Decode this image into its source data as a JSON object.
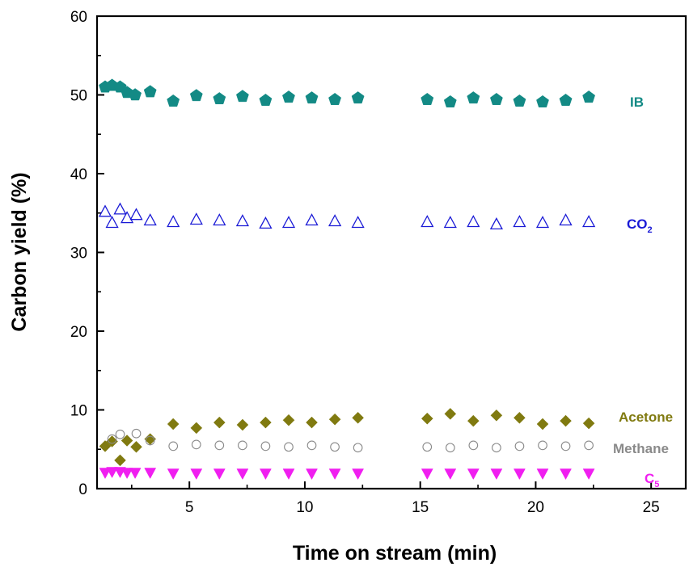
{
  "chart_data": {
    "type": "scatter",
    "xlabel": "Time on stream (min)",
    "ylabel": "Carbon yield (%)",
    "xlim": [
      1,
      26.5
    ],
    "ylim": [
      0,
      60
    ],
    "x_ticks": [
      5,
      10,
      15,
      20,
      25
    ],
    "x_tick_labels": [
      "5",
      "10",
      "15",
      "20",
      "25"
    ],
    "y_ticks": [
      0,
      10,
      20,
      30,
      40,
      50,
      60
    ],
    "y_tick_labels": [
      "0",
      "10",
      "20",
      "30",
      "40",
      "50",
      "60"
    ],
    "grid": false,
    "legend": "none (series labelled at right end of data)",
    "series": [
      {
        "key": "ib",
        "name": "IB",
        "marker": "pentagon-filled",
        "color": "#138a85",
        "points": [
          [
            1.35,
            51.0
          ],
          [
            1.65,
            51.2
          ],
          [
            2.0,
            51.0
          ],
          [
            2.3,
            50.3
          ],
          [
            2.65,
            50.0
          ],
          [
            3.3,
            50.4
          ],
          [
            4.3,
            49.2
          ],
          [
            5.3,
            49.9
          ],
          [
            6.3,
            49.5
          ],
          [
            7.3,
            49.8
          ],
          [
            8.3,
            49.3
          ],
          [
            9.3,
            49.7
          ],
          [
            10.3,
            49.6
          ],
          [
            11.3,
            49.4
          ],
          [
            12.3,
            49.6
          ],
          [
            15.3,
            49.4
          ],
          [
            16.3,
            49.1
          ],
          [
            17.3,
            49.6
          ],
          [
            18.3,
            49.4
          ],
          [
            19.3,
            49.2
          ],
          [
            20.3,
            49.1
          ],
          [
            21.3,
            49.3
          ],
          [
            22.3,
            49.7
          ]
        ]
      },
      {
        "key": "co2",
        "name": "CO",
        "name_subscript": "2",
        "marker": "triangle-open",
        "color": "#1a1ad6",
        "points": [
          [
            1.35,
            35.2
          ],
          [
            1.65,
            33.8
          ],
          [
            2.0,
            35.5
          ],
          [
            2.3,
            34.4
          ],
          [
            2.7,
            34.8
          ],
          [
            3.3,
            34.1
          ],
          [
            4.3,
            33.9
          ],
          [
            5.3,
            34.2
          ],
          [
            6.3,
            34.1
          ],
          [
            7.3,
            34.0
          ],
          [
            8.3,
            33.7
          ],
          [
            9.3,
            33.8
          ],
          [
            10.3,
            34.1
          ],
          [
            11.3,
            34.0
          ],
          [
            12.3,
            33.8
          ],
          [
            15.3,
            33.9
          ],
          [
            16.3,
            33.8
          ],
          [
            17.3,
            33.9
          ],
          [
            18.3,
            33.6
          ],
          [
            19.3,
            33.9
          ],
          [
            20.3,
            33.8
          ],
          [
            21.3,
            34.1
          ],
          [
            22.3,
            33.9
          ]
        ]
      },
      {
        "key": "acetone",
        "name": "Acetone",
        "marker": "diamond-filled",
        "color": "#807a10",
        "points": [
          [
            1.35,
            5.4
          ],
          [
            1.65,
            6.0
          ],
          [
            2.0,
            3.6
          ],
          [
            2.3,
            6.1
          ],
          [
            2.7,
            5.3
          ],
          [
            3.3,
            6.3
          ],
          [
            4.3,
            8.2
          ],
          [
            5.3,
            7.7
          ],
          [
            6.3,
            8.4
          ],
          [
            7.3,
            8.1
          ],
          [
            8.3,
            8.4
          ],
          [
            9.3,
            8.7
          ],
          [
            10.3,
            8.4
          ],
          [
            11.3,
            8.8
          ],
          [
            12.3,
            9.0
          ],
          [
            15.3,
            8.9
          ],
          [
            16.3,
            9.5
          ],
          [
            17.3,
            8.6
          ],
          [
            18.3,
            9.3
          ],
          [
            19.3,
            9.0
          ],
          [
            20.3,
            8.2
          ],
          [
            21.3,
            8.6
          ],
          [
            22.3,
            8.3
          ]
        ]
      },
      {
        "key": "methane",
        "name": "Methane",
        "marker": "circle-open",
        "color": "#8a8a8a",
        "points": [
          [
            1.65,
            6.3
          ],
          [
            2.0,
            6.9
          ],
          [
            2.7,
            7.0
          ],
          [
            3.3,
            6.1
          ],
          [
            4.3,
            5.4
          ],
          [
            5.3,
            5.6
          ],
          [
            6.3,
            5.5
          ],
          [
            7.3,
            5.5
          ],
          [
            8.3,
            5.4
          ],
          [
            9.3,
            5.3
          ],
          [
            10.3,
            5.5
          ],
          [
            11.3,
            5.3
          ],
          [
            12.3,
            5.2
          ],
          [
            15.3,
            5.3
          ],
          [
            16.3,
            5.2
          ],
          [
            17.3,
            5.5
          ],
          [
            18.3,
            5.2
          ],
          [
            19.3,
            5.4
          ],
          [
            20.3,
            5.5
          ],
          [
            21.3,
            5.4
          ],
          [
            22.3,
            5.5
          ]
        ]
      },
      {
        "key": "c5",
        "name": "C",
        "name_subscript": "5",
        "marker": "triangle-down-filled",
        "color": "#f01ef0",
        "points": [
          [
            1.35,
            2.0
          ],
          [
            1.65,
            2.1
          ],
          [
            2.0,
            2.1
          ],
          [
            2.3,
            2.0
          ],
          [
            2.65,
            2.0
          ],
          [
            3.3,
            2.0
          ],
          [
            4.3,
            1.9
          ],
          [
            5.3,
            1.9
          ],
          [
            6.3,
            1.9
          ],
          [
            7.3,
            1.9
          ],
          [
            8.3,
            1.9
          ],
          [
            9.3,
            1.9
          ],
          [
            10.3,
            1.9
          ],
          [
            11.3,
            1.9
          ],
          [
            12.3,
            1.9
          ],
          [
            15.3,
            1.9
          ],
          [
            16.3,
            1.9
          ],
          [
            17.3,
            1.9
          ],
          [
            18.3,
            1.9
          ],
          [
            19.3,
            1.9
          ],
          [
            20.3,
            1.9
          ],
          [
            21.3,
            1.9
          ],
          [
            22.3,
            1.9
          ]
        ]
      }
    ]
  }
}
